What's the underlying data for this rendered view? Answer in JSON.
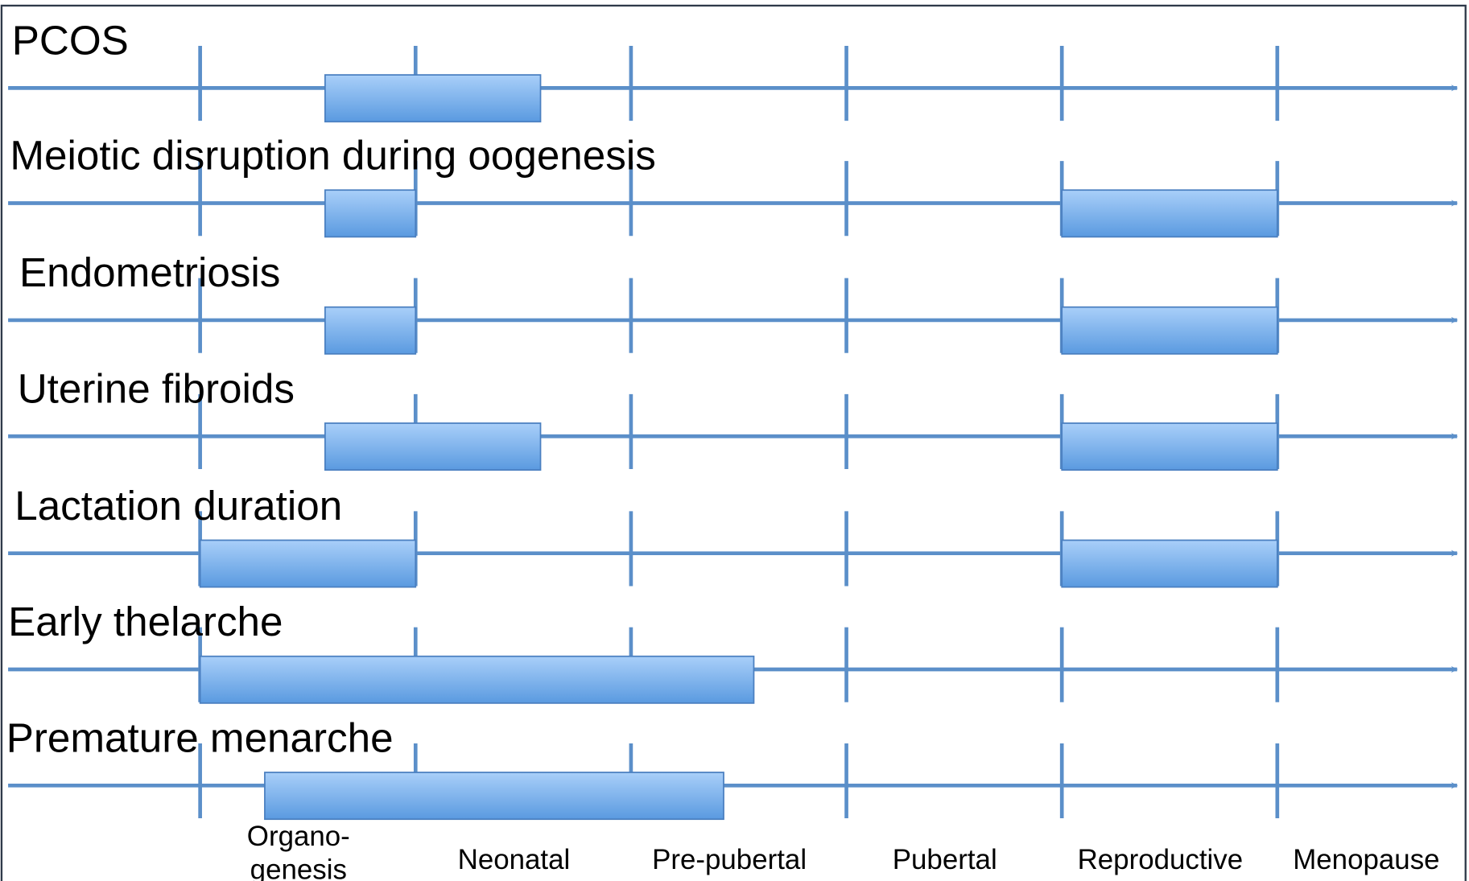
{
  "rows": [
    {
      "label": "PCOS",
      "spans": [
        [
          0.58,
          1.58
        ]
      ]
    },
    {
      "label": "Meiotic disruption during oogenesis",
      "spans": [
        [
          0.58,
          1.0
        ],
        [
          4.0,
          5.0
        ]
      ]
    },
    {
      "label": "Endometriosis",
      "spans": [
        [
          0.58,
          1.0
        ],
        [
          4.0,
          5.0
        ]
      ]
    },
    {
      "label": "Uterine fibroids",
      "spans": [
        [
          0.58,
          1.58
        ],
        [
          4.0,
          5.0
        ]
      ]
    },
    {
      "label": "Lactation duration",
      "spans": [
        [
          0.0,
          1.0
        ],
        [
          4.0,
          5.0
        ]
      ]
    },
    {
      "label": "Early thelarche",
      "spans": [
        [
          0.0,
          2.57
        ]
      ]
    },
    {
      "label": "Premature menarche",
      "spans": [
        [
          0.3,
          2.43
        ]
      ]
    }
  ],
  "stages": [
    [
      "Organo-",
      "genesis"
    ],
    [
      "Neonatal"
    ],
    [
      "Pre-pubertal"
    ],
    [
      "Pubertal"
    ],
    [
      "Reproductive"
    ],
    [
      "Menopause"
    ]
  ]
}
